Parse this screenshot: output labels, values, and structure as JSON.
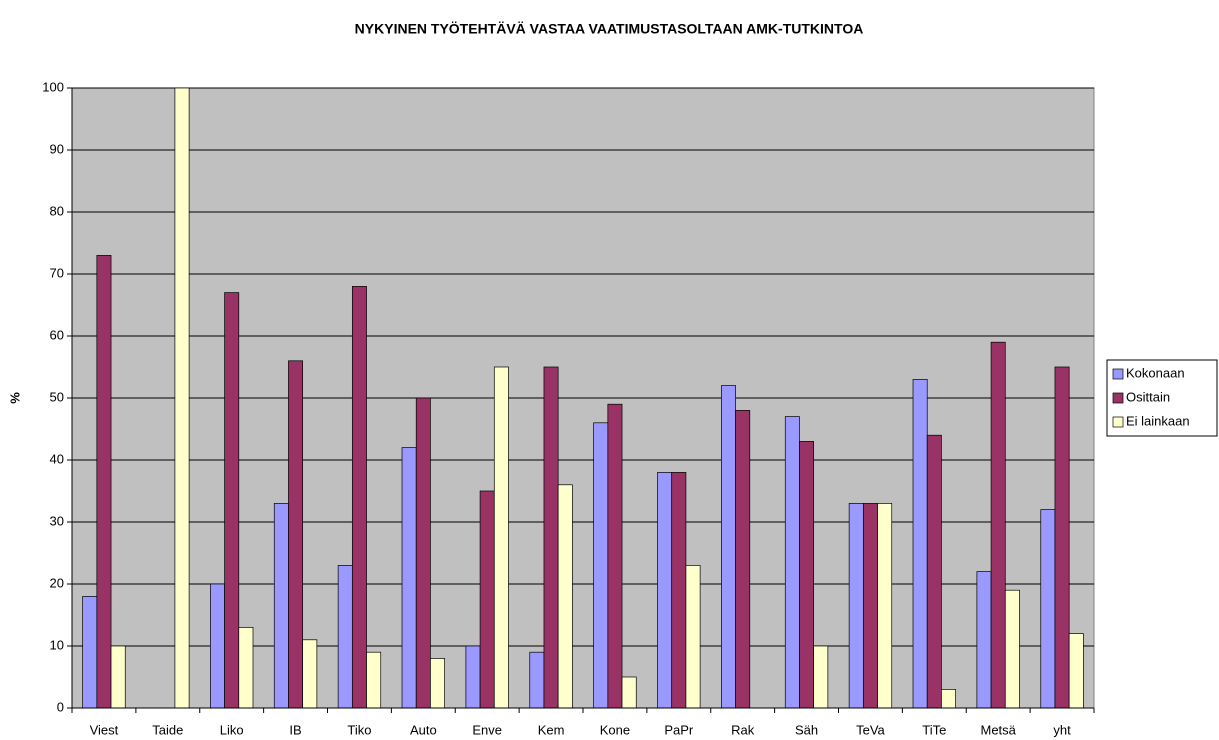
{
  "chart_data": {
    "type": "bar",
    "title": "NYKYINEN TYÖTEHTÄVÄ VASTAA VAATIMUSTASOLTAAN AMK-TUTKINTOA",
    "y_label": "%",
    "categories": [
      "Viest",
      "Taide",
      "Liko",
      "IB",
      "Tiko",
      "Auto",
      "Enve",
      "Kem",
      "Kone",
      "PaPr",
      "Rak",
      "Säh",
      "TeVa",
      "TiTe",
      "Metsä",
      "yht"
    ],
    "series": [
      {
        "name": "Kokonaan",
        "color": "#9999ff",
        "values": [
          18,
          0,
          20,
          33,
          23,
          42,
          10,
          9,
          46,
          38,
          52,
          47,
          33,
          53,
          22,
          32
        ]
      },
      {
        "name": "Osittain",
        "color": "#993366",
        "values": [
          73,
          0,
          67,
          56,
          68,
          50,
          35,
          55,
          49,
          38,
          48,
          43,
          33,
          44,
          59,
          55
        ]
      },
      {
        "name": "Ei lainkaan",
        "color": "#ffffcc",
        "values": [
          10,
          100,
          13,
          11,
          9,
          8,
          55,
          36,
          5,
          23,
          0,
          10,
          33,
          3,
          19,
          12
        ]
      }
    ],
    "ylim": [
      0,
      100
    ],
    "yticks": [
      0,
      10,
      20,
      30,
      40,
      50,
      60,
      70,
      80,
      90,
      100
    ],
    "grid": true,
    "legend": "right",
    "plot_background": "#c0c0c0"
  }
}
